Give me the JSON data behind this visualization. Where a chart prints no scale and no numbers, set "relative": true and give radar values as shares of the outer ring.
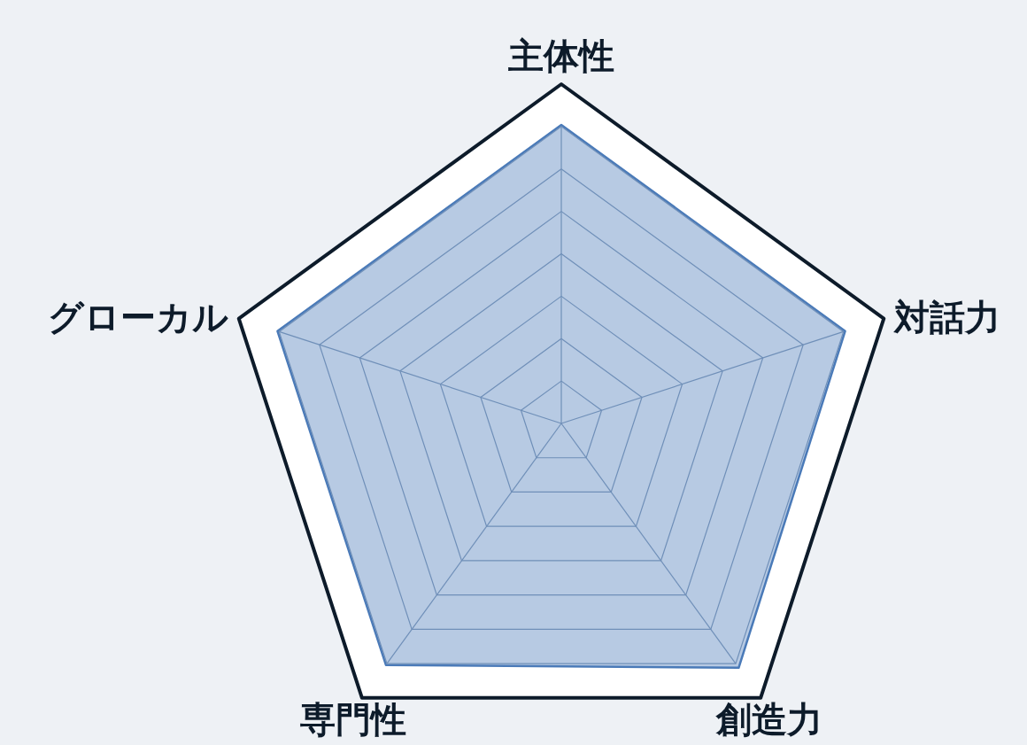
{
  "chart_data": {
    "type": "radar",
    "relative": true,
    "grid": true,
    "categories": [
      "主体性",
      "対話力",
      "創造力",
      "専門性",
      "グローカル"
    ],
    "series": [
      {
        "color": "#4a7ab8",
        "values": [
          0.88,
          0.88,
          0.89,
          0.88,
          0.88
        ]
      }
    ]
  }
}
